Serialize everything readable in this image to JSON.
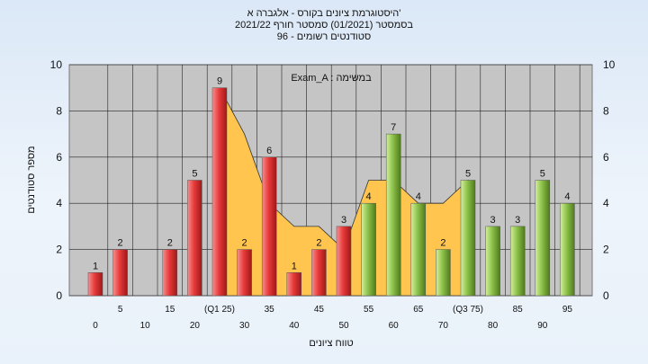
{
  "header": {
    "line1": "היסטוגרמת ציונים בקורס - אלגברה א'",
    "line2": "בסמסטר  (01/2021)  סמסטר חורף 2021/22",
    "line3": "סטודנטים רשומים - 96"
  },
  "chart_data": {
    "type": "bar",
    "title": "היסטוגרמת ציונים בקורס - אלגברה א'",
    "task_label": "Exam_A : במשימה",
    "xlabel": "טווח ציונים",
    "ylabel": "מספר סטודנטים",
    "ylim": [
      0,
      10
    ],
    "yticks": [
      0,
      2,
      4,
      6,
      8,
      10
    ],
    "grid": true,
    "x_tick_labels_upper": [
      "5",
      "15",
      "(Q1 25)",
      "35",
      "45",
      "55",
      "65",
      "(Q3 75)",
      "85",
      "95"
    ],
    "x_tick_labels_lower": [
      "0",
      "10",
      "20",
      "30",
      "40",
      "50",
      "60",
      "70",
      "80",
      "90"
    ],
    "bins": [
      0,
      5,
      10,
      15,
      20,
      25,
      30,
      35,
      40,
      45,
      50,
      55,
      60,
      65,
      70,
      75,
      80,
      85,
      90,
      95
    ],
    "values": [
      1,
      2,
      0,
      2,
      5,
      9,
      2,
      6,
      1,
      2,
      3,
      4,
      7,
      4,
      2,
      5,
      3,
      3,
      5,
      4
    ],
    "bar_colors": [
      "red",
      "red",
      "red",
      "red",
      "red",
      "red",
      "red",
      "red",
      "red",
      "red",
      "red",
      "green",
      "green",
      "green",
      "green",
      "green",
      "green",
      "green",
      "green",
      "green"
    ],
    "background_area": [
      null,
      null,
      null,
      null,
      null,
      9,
      7,
      4,
      3,
      3,
      2,
      5,
      5,
      4,
      4,
      5,
      null,
      null,
      null,
      null
    ],
    "colors": {
      "red": "#e83a3a",
      "green": "#8cc24a",
      "area": "#ffc54f",
      "plot_bg": "#c5c5c5"
    }
  }
}
